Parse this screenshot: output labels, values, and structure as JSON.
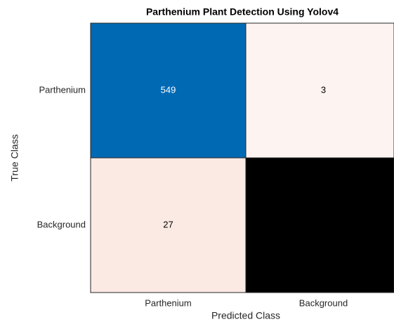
{
  "chart_data": {
    "type": "confusion-matrix",
    "title": "Parthenium Plant Detection Using Yolov4",
    "x_label": "Predicted Class",
    "y_label": "True Class",
    "categories": [
      "Parthenium",
      "Background"
    ],
    "values": [
      [
        549,
        3
      ],
      [
        27,
        null
      ]
    ],
    "cell_colors": [
      [
        "#0069b4",
        "#fdf3f0"
      ],
      [
        "#fbe9e4",
        "#000000"
      ]
    ]
  }
}
